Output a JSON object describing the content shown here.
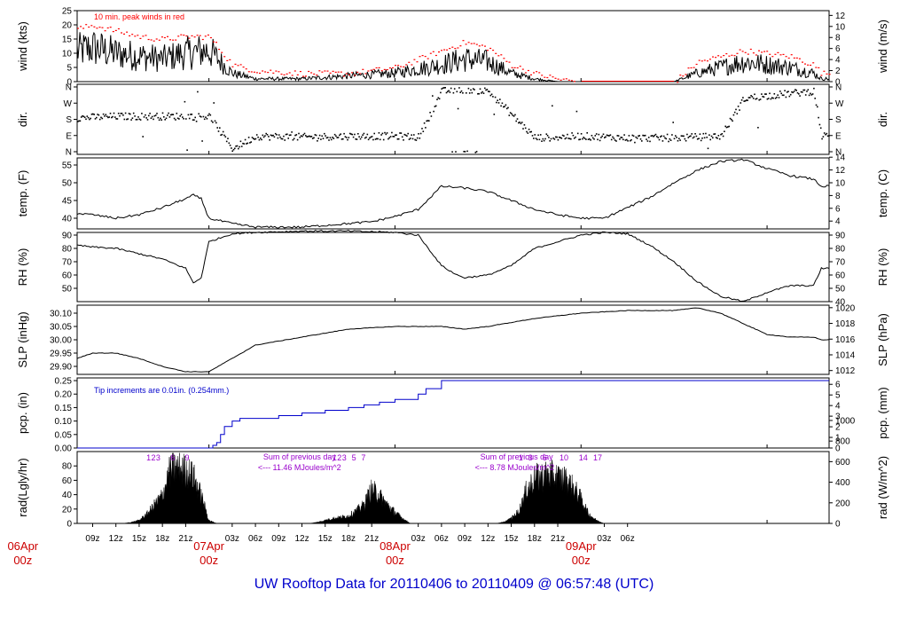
{
  "title": "UW Rooftop Data for 20110406  to  20110409 @ 06:57:48  (UTC)",
  "time_axis": {
    "hour_ticks": [
      "09z",
      "12z",
      "15z",
      "18z",
      "21z",
      "03z",
      "06z",
      "09z",
      "12z",
      "15z",
      "18z",
      "21z",
      "03z",
      "06z",
      "09z",
      "12z",
      "15z",
      "18z",
      "21z",
      "03z",
      "06z"
    ],
    "day_labels": [
      {
        "date": "06Apr",
        "time": "00z"
      },
      {
        "date": "07Apr",
        "time": "00z"
      },
      {
        "date": "08Apr",
        "time": "00z"
      },
      {
        "date": "09Apr",
        "time": "00z"
      }
    ]
  },
  "panels": {
    "wind": {
      "left_label": "wind (kts)",
      "right_label": "wind (m/s)",
      "note": "10 min. peak winds in red",
      "left_ticks": [
        "0",
        "5",
        "10",
        "15",
        "20",
        "25"
      ],
      "right_ticks": [
        "0",
        "2",
        "4",
        "6",
        "8",
        "10",
        "12"
      ]
    },
    "dir": {
      "left_label": "dir.",
      "right_label": "dir.",
      "left_ticks": [
        "N",
        "E",
        "S",
        "W",
        "N"
      ],
      "right_ticks": [
        "N",
        "E",
        "S",
        "W",
        "N"
      ]
    },
    "temp": {
      "left_label": "temp. (F)",
      "right_label": "temp. (C)",
      "left_ticks": [
        "40",
        "45",
        "50",
        "55"
      ],
      "right_ticks": [
        "4",
        "6",
        "8",
        "10",
        "12",
        "14"
      ]
    },
    "rh": {
      "left_label": "RH (%)",
      "right_label": "RH (%)",
      "left_ticks": [
        "50",
        "60",
        "70",
        "80",
        "90"
      ],
      "right_ticks": [
        "40",
        "50",
        "60",
        "70",
        "80",
        "90"
      ]
    },
    "slp": {
      "left_label": "SLP (inHg)",
      "right_label": "SLP (hPa)",
      "left_ticks": [
        "29.90",
        "29.95",
        "30.00",
        "30.05",
        "30.10"
      ],
      "right_ticks": [
        "1012",
        "1014",
        "1016",
        "1018",
        "1020"
      ]
    },
    "pcp": {
      "left_label": "pcp. (in)",
      "right_label": "pcp. (mm)",
      "note": "Tip increments are 0.01in. (0.254mm.)",
      "left_ticks": [
        "0.00",
        "0.05",
        "0.10",
        "0.15",
        "0.20",
        "0.25"
      ],
      "right_ticks": [
        "0",
        "1",
        "2",
        "3",
        "4",
        "5",
        "6"
      ]
    },
    "rad": {
      "left_label": "rad(Lgly/hr)",
      "right_label": "rad (W/m^2)",
      "left_ticks": [
        "0",
        "20",
        "40",
        "60",
        "80"
      ],
      "right_ticks": [
        "0",
        "200",
        "400",
        "600",
        "800",
        "1000"
      ],
      "day_sums": [
        {
          "line1": "Sum of previous day",
          "line2": "<--- 11.46 MJoules/m^2"
        },
        {
          "line1": "Sum of previous day",
          "line2": "<--- 8.78 MJoules/m^2"
        }
      ],
      "hour_marks": [
        [
          "1",
          "2",
          "3",
          "6",
          "9"
        ],
        [
          "1",
          "2",
          "3",
          "5",
          "7"
        ],
        [
          "1",
          "3",
          "6",
          "10",
          "14",
          "17"
        ]
      ]
    }
  },
  "colors": {
    "series": "#000000",
    "peak_wind": "#ff0000",
    "precip": "#0000cc",
    "rad_note": "#9900cc",
    "day_label": "#cc0000",
    "footer": "#0000cc"
  },
  "chart_data": [
    {
      "type": "line",
      "title": "",
      "ylabel": "wind (kts)",
      "ylabel_right": "wind (m/s)",
      "ylim": [
        0,
        25
      ],
      "x_hours_utc": [
        0,
        6,
        9,
        12,
        15,
        18,
        21,
        24,
        27,
        30,
        36,
        42,
        48,
        54,
        57,
        60,
        63,
        66,
        69,
        72,
        78,
        84,
        87,
        90,
        93,
        96,
        99,
        102,
        103
      ],
      "series": [
        {
          "name": "10 min. peak",
          "values": [
            12,
            18,
            20,
            18,
            16,
            15,
            16,
            16,
            6,
            4,
            3,
            3,
            5,
            11,
            14,
            12,
            6,
            3,
            1,
            0,
            0,
            0,
            7,
            9,
            11,
            10,
            9,
            6,
            3
          ]
        },
        {
          "values": [
            8,
            10,
            12,
            10,
            9,
            8,
            10,
            11,
            3,
            1,
            1,
            2,
            3,
            6,
            8,
            7,
            3,
            1,
            0,
            0,
            0,
            0,
            3,
            5,
            7,
            6,
            5,
            3,
            1
          ]
        }
      ]
    },
    {
      "type": "scatter",
      "title": "",
      "ylabel": "dir.",
      "y_ticks": [
        "N",
        "E",
        "S",
        "W",
        "N"
      ],
      "x_hours_utc": [
        0,
        6,
        12,
        18,
        24,
        27,
        30,
        36,
        42,
        48,
        51,
        54,
        57,
        60,
        66,
        72,
        78,
        84,
        90,
        93,
        96,
        102,
        103
      ],
      "values_deg": [
        180,
        190,
        200,
        200,
        200,
        20,
        90,
        85,
        90,
        90,
        85,
        340,
        350,
        340,
        80,
        90,
        80,
        80,
        90,
        300,
        315,
        340,
        90
      ]
    },
    {
      "type": "line",
      "title": "",
      "ylabel": "temp. (F)",
      "ylabel_right": "temp. (C)",
      "ylim": [
        37,
        57
      ],
      "x_hours_utc": [
        0,
        3,
        6,
        9,
        12,
        15,
        18,
        21,
        22,
        23,
        24,
        27,
        30,
        33,
        36,
        39,
        42,
        45,
        48,
        51,
        54,
        57,
        60,
        63,
        66,
        69,
        72,
        75,
        78,
        81,
        84,
        87,
        90,
        93,
        96,
        99,
        102,
        103
      ],
      "values": [
        42,
        42.5,
        41.5,
        41,
        40,
        41,
        43,
        45.5,
        46.5,
        45.5,
        40,
        38.5,
        37.5,
        37.5,
        37.5,
        38,
        38.5,
        39,
        40.5,
        42.5,
        49,
        48.5,
        47.5,
        45,
        42.5,
        41,
        40,
        40,
        43,
        46,
        50,
        53.5,
        56,
        56.5,
        54,
        52,
        51,
        49
      ]
    },
    {
      "type": "line",
      "title": "",
      "ylabel": "RH (%)",
      "ylim": [
        40,
        92
      ],
      "x_hours_utc": [
        0,
        3,
        6,
        9,
        12,
        15,
        18,
        21,
        22,
        23,
        24,
        27,
        30,
        36,
        42,
        48,
        51,
        54,
        56,
        57,
        60,
        63,
        66,
        69,
        72,
        75,
        78,
        81,
        84,
        87,
        90,
        93,
        96,
        99,
        102,
        103
      ],
      "values": [
        85,
        84,
        83,
        81,
        80,
        76,
        72,
        65,
        54,
        58,
        85,
        91,
        92,
        93,
        93,
        92,
        90,
        67,
        60,
        58,
        60,
        67,
        80,
        85,
        90,
        92,
        91,
        82,
        70,
        55,
        44,
        40,
        47,
        52,
        52,
        65
      ]
    },
    {
      "type": "line",
      "title": "",
      "ylabel": "SLP (inHg)",
      "ylabel_right": "SLP (hPa)",
      "ylim": [
        29.87,
        30.13
      ],
      "x_hours_utc": [
        0,
        3,
        6,
        9,
        12,
        15,
        18,
        21,
        24,
        27,
        30,
        36,
        42,
        48,
        54,
        57,
        60,
        66,
        72,
        78,
        84,
        87,
        90,
        93,
        96,
        99,
        102,
        103
      ],
      "values": [
        29.97,
        29.93,
        29.92,
        29.95,
        29.95,
        29.93,
        29.9,
        29.88,
        29.88,
        29.93,
        29.98,
        30.01,
        30.04,
        30.05,
        30.05,
        30.04,
        30.05,
        30.08,
        30.1,
        30.11,
        30.11,
        30.12,
        30.1,
        30.06,
        30.02,
        30.01,
        30.01,
        30.0
      ]
    },
    {
      "type": "line",
      "title": "",
      "ylabel": "pcp. (in)",
      "ylabel_right": "pcp. (mm)",
      "ylim": [
        0,
        0.26
      ],
      "x_hours_utc": [
        0,
        24,
        24.5,
        25,
        25.5,
        26,
        27,
        28,
        30,
        33,
        36,
        39,
        42,
        44,
        46,
        48,
        51,
        52,
        54,
        104
      ],
      "values": [
        0,
        0,
        0.01,
        0.02,
        0.05,
        0.08,
        0.1,
        0.11,
        0.11,
        0.12,
        0.13,
        0.14,
        0.15,
        0.16,
        0.17,
        0.18,
        0.2,
        0.22,
        0.25,
        0.25
      ]
    },
    {
      "type": "area",
      "title": "",
      "ylabel": "rad(Lgly/hr)",
      "ylabel_right": "rad (W/m^2)",
      "ylim": [
        0,
        100
      ],
      "x_hours_utc": [
        0,
        13,
        14,
        15,
        16,
        17,
        18,
        19,
        20,
        21,
        22,
        23,
        24,
        25,
        37,
        38,
        39,
        40,
        41,
        42,
        43,
        44,
        45,
        46,
        47,
        48,
        49,
        50,
        61,
        62,
        63,
        64,
        65,
        66,
        67,
        68,
        69,
        70,
        71,
        72,
        73,
        74,
        75,
        104
      ],
      "values": [
        0,
        0,
        2,
        5,
        15,
        30,
        45,
        85,
        90,
        85,
        75,
        45,
        5,
        0,
        0,
        2,
        5,
        8,
        10,
        12,
        20,
        30,
        55,
        45,
        30,
        18,
        8,
        0,
        0,
        2,
        8,
        20,
        55,
        72,
        76,
        78,
        74,
        70,
        58,
        40,
        15,
        5,
        0,
        0
      ]
    }
  ]
}
